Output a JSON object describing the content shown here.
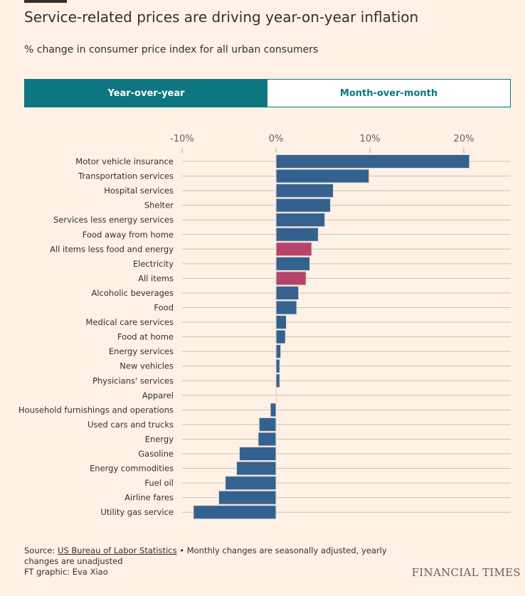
{
  "title": "Service-related prices are driving year-on-year inflation",
  "subtitle": "% change in consumer price index for all urban consumers",
  "tabs": [
    {
      "label": "Year-over-year",
      "active": true
    },
    {
      "label": "Month-over-month",
      "active": false
    }
  ],
  "footer": {
    "source_prefix": "Source: ",
    "source_link": "US Bureau of Labor Statistics",
    "source_note": " • Monthly changes are seasonally adjusted, yearly changes are unadjusted",
    "credit": "FT graphic: Eva Xiao"
  },
  "brand": "FINANCIAL TIMES",
  "colors": {
    "default": "#35618f",
    "highlight": "#b8436a",
    "accent": "#0d7680"
  },
  "chart_data": {
    "type": "bar",
    "orientation": "horizontal",
    "xlim": [
      -10,
      25
    ],
    "ticks": [
      -10,
      0,
      10,
      20
    ],
    "tick_labels": [
      "-10%",
      "0%",
      "10%",
      "20%"
    ],
    "grid": true,
    "categories": [
      "Motor vehicle insurance",
      "Transportation services",
      "Hospital services",
      "Shelter",
      "Services less energy services",
      "Food away from home",
      "All items less food and energy",
      "Electricity",
      "All items",
      "Alcoholic beverages",
      "Food",
      "Medical care services",
      "Food at home",
      "Energy services",
      "New vehicles",
      "Physicians' services",
      "Apparel",
      "Household furnishings and operations",
      "Used cars and trucks",
      "Energy",
      "Gasoline",
      "Energy commodities",
      "Fuel oil",
      "Airline fares",
      "Utility gas service"
    ],
    "values": [
      20.6,
      9.9,
      6.1,
      5.8,
      5.2,
      4.5,
      3.8,
      3.6,
      3.2,
      2.4,
      2.2,
      1.1,
      1.0,
      0.5,
      0.4,
      0.4,
      0.0,
      -0.6,
      -1.8,
      -1.9,
      -3.9,
      -4.2,
      -5.4,
      -6.1,
      -8.8
    ],
    "highlighted": [
      "All items less food and energy",
      "All items"
    ]
  }
}
